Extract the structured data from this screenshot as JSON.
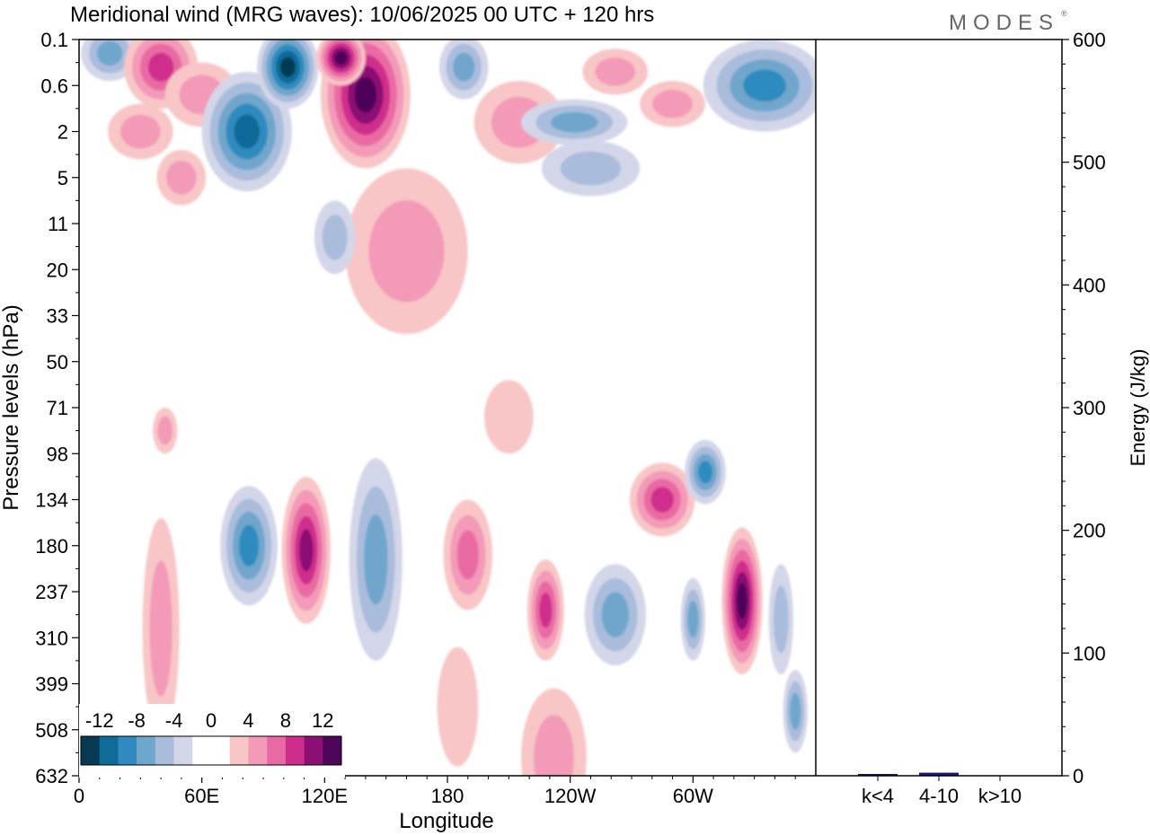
{
  "header": {
    "title": "Meridional wind (MRG waves):  10/06/2025  00 UTC  + 120 hrs",
    "brand": "MODES",
    "brand_mark": "®"
  },
  "chart_data": {
    "type": "heatmap",
    "title": "Meridional wind (MRG waves):  10/06/2025  00 UTC  + 120 hrs",
    "xlabel": "Longitude",
    "ylabel": "Pressure levels (hPa)",
    "y2label": "Energy (J/kg)",
    "x_ticks": [
      "0",
      "60E",
      "120E",
      "180",
      "120W",
      "60W"
    ],
    "x_tick_degrees": [
      0,
      60,
      120,
      180,
      240,
      300
    ],
    "xlim": [
      0,
      360
    ],
    "pressure_levels": [
      "0.1",
      "0.6",
      "2",
      "5",
      "11",
      "20",
      "33",
      "50",
      "71",
      "98",
      "134",
      "180",
      "237",
      "310",
      "399",
      "508",
      "632"
    ],
    "colorbar": {
      "labels": [
        "-12",
        "-8",
        "-4",
        "0",
        "4",
        "8",
        "12"
      ],
      "colors": [
        "#063a52",
        "#106b99",
        "#2f8bbf",
        "#6fa6cc",
        "#a9bcdb",
        "#d3d6e8",
        "#ffffff",
        "#ffffff",
        "#f8c6c6",
        "#f39ab8",
        "#e96aa3",
        "#cf2d8c",
        "#8c0f73",
        "#4d0659"
      ]
    },
    "energy_axis": {
      "ticks": [
        "0",
        "100",
        "200",
        "300",
        "400",
        "500",
        "600"
      ],
      "ylim": [
        0,
        600
      ]
    },
    "energy_bars": {
      "categories": [
        "k<4",
        "4-10",
        "k>10"
      ],
      "values": [
        0.5,
        2.5,
        0
      ],
      "colors": [
        "#1a1a5a",
        "#1a1a7a",
        "#1a1a5a"
      ]
    },
    "fields": [
      {
        "lon": 15,
        "lev": 0.3,
        "rx": 14,
        "ry": 0.6,
        "v": -6
      },
      {
        "lon": 40,
        "lev": 0.6,
        "rx": 18,
        "ry": 0.9,
        "v": 8
      },
      {
        "lon": 60,
        "lev": 1.2,
        "rx": 18,
        "ry": 0.7,
        "v": 4
      },
      {
        "lon": 30,
        "lev": 2.0,
        "rx": 16,
        "ry": 0.6,
        "v": 5
      },
      {
        "lon": 82,
        "lev": 2.0,
        "rx": 22,
        "ry": 1.3,
        "v": -10
      },
      {
        "lon": 102,
        "lev": 0.6,
        "rx": 15,
        "ry": 0.9,
        "v": -12
      },
      {
        "lon": 140,
        "lev": 1.2,
        "rx": 22,
        "ry": 1.6,
        "v": 14
      },
      {
        "lon": 128,
        "lev": 0.4,
        "rx": 12,
        "ry": 0.6,
        "v": 12
      },
      {
        "lon": 188,
        "lev": 0.6,
        "rx": 12,
        "ry": 0.7,
        "v": -6
      },
      {
        "lon": 215,
        "lev": 1.8,
        "rx": 22,
        "ry": 0.9,
        "v": 4
      },
      {
        "lon": 242,
        "lev": 1.8,
        "rx": 26,
        "ry": 0.5,
        "v": -7
      },
      {
        "lon": 290,
        "lev": 1.4,
        "rx": 16,
        "ry": 0.5,
        "v": 5
      },
      {
        "lon": 335,
        "lev": 1.0,
        "rx": 30,
        "ry": 1.0,
        "v": -9
      },
      {
        "lon": 262,
        "lev": 0.7,
        "rx": 16,
        "ry": 0.5,
        "v": 4
      },
      {
        "lon": 160,
        "lev": 4.6,
        "rx": 30,
        "ry": 1.8,
        "v": 5
      },
      {
        "lon": 50,
        "lev": 3.0,
        "rx": 12,
        "ry": 0.6,
        "v": 5
      },
      {
        "lon": 250,
        "lev": 2.8,
        "rx": 24,
        "ry": 0.6,
        "v": -4
      },
      {
        "lon": 125,
        "lev": 4.3,
        "rx": 10,
        "ry": 0.8,
        "v": -5
      },
      {
        "lon": 210,
        "lev": 8.2,
        "rx": 12,
        "ry": 0.8,
        "v": 2
      },
      {
        "lon": 42,
        "lev": 8.5,
        "rx": 6,
        "ry": 0.5,
        "v": 4
      },
      {
        "lon": 83,
        "lev": 11,
        "rx": 14,
        "ry": 1.3,
        "v": -9
      },
      {
        "lon": 111,
        "lev": 11.1,
        "rx": 12,
        "ry": 1.6,
        "v": 11
      },
      {
        "lon": 145,
        "lev": 11.3,
        "rx": 13,
        "ry": 2.2,
        "v": -7
      },
      {
        "lon": 190,
        "lev": 11.2,
        "rx": 12,
        "ry": 1.2,
        "v": 7
      },
      {
        "lon": 228,
        "lev": 12.4,
        "rx": 9,
        "ry": 1.1,
        "v": 8
      },
      {
        "lon": 262,
        "lev": 12.5,
        "rx": 15,
        "ry": 1.1,
        "v": -7
      },
      {
        "lon": 285,
        "lev": 10.0,
        "rx": 16,
        "ry": 0.8,
        "v": 8
      },
      {
        "lon": 306,
        "lev": 9.4,
        "rx": 10,
        "ry": 0.7,
        "v": -8
      },
      {
        "lon": 300,
        "lev": 12.6,
        "rx": 6,
        "ry": 0.9,
        "v": -6
      },
      {
        "lon": 324,
        "lev": 12.2,
        "rx": 10,
        "ry": 1.6,
        "v": 12
      },
      {
        "lon": 343,
        "lev": 12.6,
        "rx": 6,
        "ry": 1.2,
        "v": -5
      },
      {
        "lon": 40,
        "lev": 12.8,
        "rx": 9,
        "ry": 2.4,
        "v": 4
      },
      {
        "lon": 232,
        "lev": 15.6,
        "rx": 16,
        "ry": 1.5,
        "v": 5
      },
      {
        "lon": 350,
        "lev": 14.6,
        "rx": 6,
        "ry": 0.9,
        "v": -6
      },
      {
        "lon": 185,
        "lev": 14.5,
        "rx": 10,
        "ry": 1.3,
        "v": 3
      }
    ]
  }
}
